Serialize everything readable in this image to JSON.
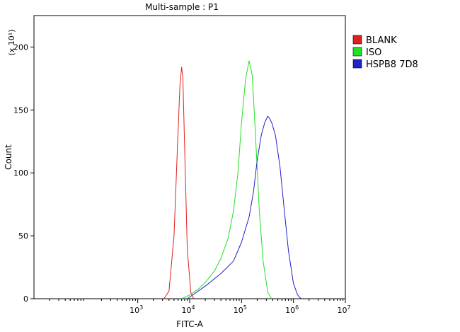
{
  "chart_data": {
    "type": "line",
    "title": "Multi-sample : P1",
    "xlabel": "FITC-A",
    "ylabel": "Count",
    "y_multiplier": "(x 10¹)",
    "x_scale": "log",
    "xlim": [
      10,
      10000000
    ],
    "ylim": [
      0,
      225
    ],
    "x_ticks": [
      {
        "base": "10",
        "exp": "3",
        "value": 1000
      },
      {
        "base": "10",
        "exp": "4",
        "value": 10000
      },
      {
        "base": "10",
        "exp": "5",
        "value": 100000
      },
      {
        "base": "10",
        "exp": "6",
        "value": 1000000
      },
      {
        "base": "10",
        "exp": "7",
        "value": 10000000
      }
    ],
    "y_ticks": [
      "0",
      "50",
      "100",
      "150",
      "200"
    ],
    "grid": false,
    "legend_position": "top-right",
    "series": [
      {
        "name": "BLANK",
        "color": "#e02020",
        "x": [
          3200,
          4000,
          5000,
          5800,
          6500,
          7000,
          7400,
          8000,
          9000,
          10500,
          12000
        ],
        "y": [
          0,
          6,
          50,
          120,
          170,
          184,
          176,
          120,
          40,
          5,
          0
        ]
      },
      {
        "name": "ISO",
        "color": "#22e022",
        "x": [
          7000,
          10000,
          15000,
          20000,
          30000,
          40000,
          55000,
          70000,
          85000,
          100000,
          120000,
          140000,
          160000,
          180000,
          220000,
          260000,
          320000,
          380000
        ],
        "y": [
          0,
          3,
          8,
          13,
          22,
          32,
          48,
          70,
          100,
          140,
          175,
          189,
          178,
          140,
          70,
          30,
          5,
          0
        ]
      },
      {
        "name": "HSPB8 7D8",
        "color": "#2020cc",
        "x": [
          9000,
          20000,
          40000,
          70000,
          100000,
          140000,
          170000,
          200000,
          240000,
          280000,
          320000,
          350000,
          380000,
          450000,
          550000,
          650000,
          800000,
          1000000,
          1200000,
          1400000
        ],
        "y": [
          0,
          10,
          20,
          30,
          45,
          65,
          85,
          110,
          130,
          140,
          145,
          143,
          140,
          130,
          105,
          75,
          38,
          12,
          3,
          0
        ]
      }
    ]
  }
}
